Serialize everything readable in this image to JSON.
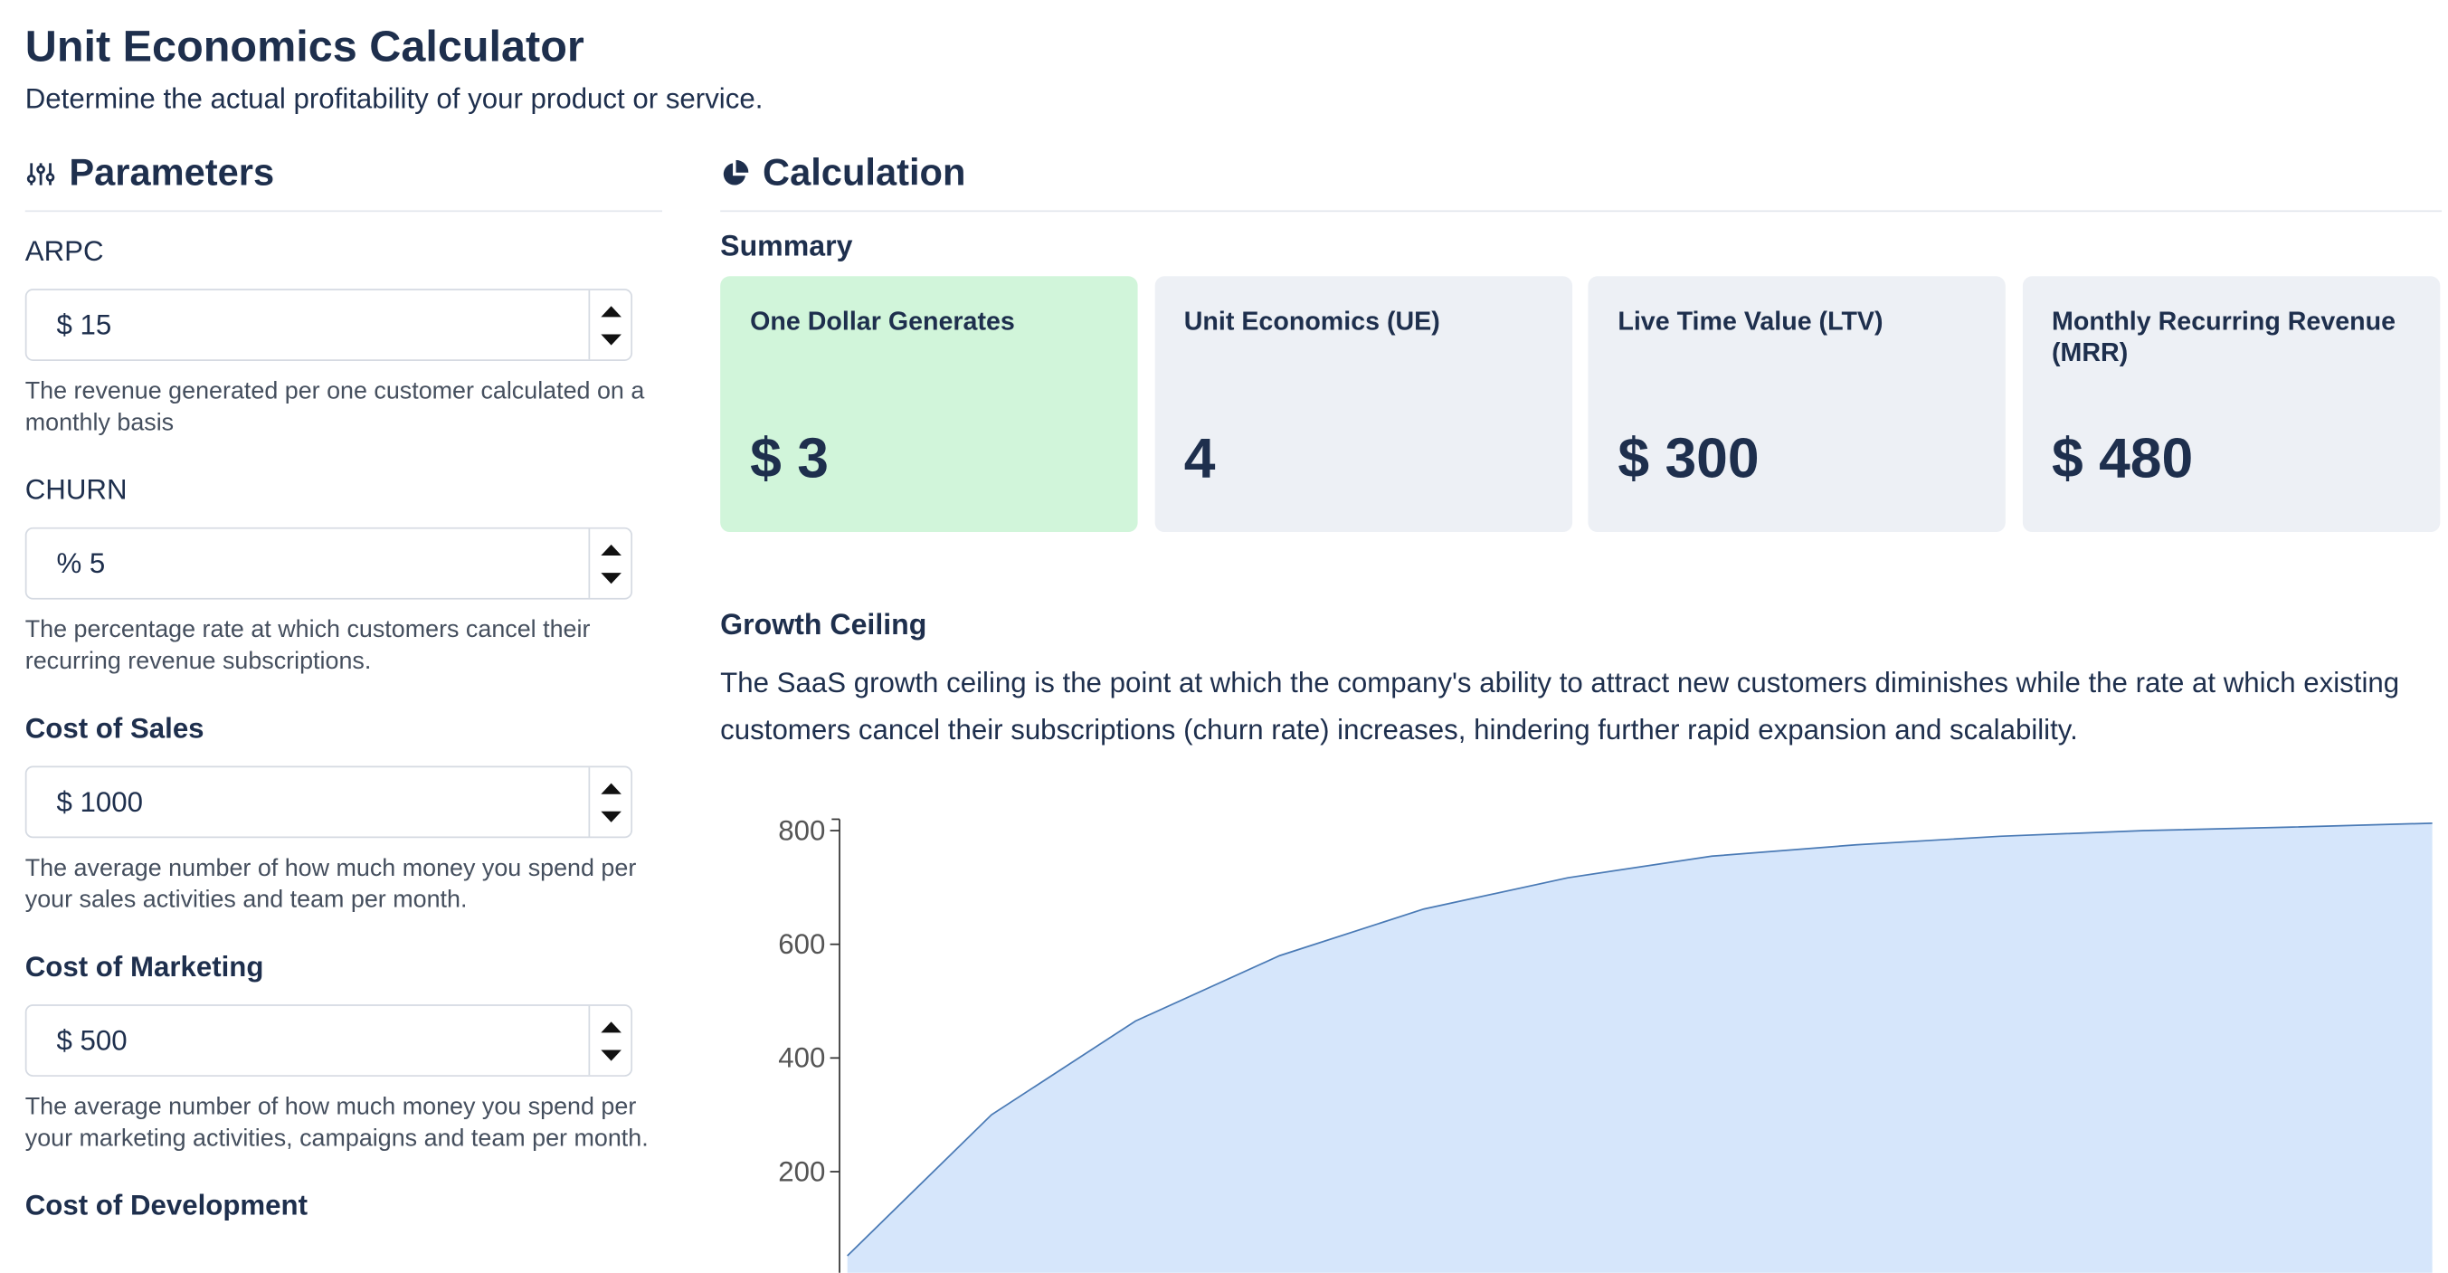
{
  "header": {
    "title": "Unit Economics Calculator",
    "subtitle": "Determine the actual profitability of your product or service."
  },
  "parameters": {
    "title": "Parameters",
    "fields": [
      {
        "label": "ARPC",
        "prefix": "$",
        "value": 15,
        "help": "The revenue generated per one customer calculated on a monthly basis"
      },
      {
        "label": "CHURN",
        "prefix": "%",
        "value": 5,
        "help": "The percentage rate at which customers cancel their recurring revenue subscriptions."
      },
      {
        "label": "Cost of Sales",
        "prefix": "$",
        "value": 1000,
        "help": "The average number of how much money you spend per your sales activities and team per month."
      },
      {
        "label": "Cost of Marketing",
        "prefix": "$",
        "value": 500,
        "help": "The average number of how much money you spend per your marketing activities, campaigns and team per month."
      },
      {
        "label": "Cost of Development"
      }
    ]
  },
  "calculation": {
    "title": "Calculation",
    "summary_title": "Summary",
    "cards": [
      {
        "label": "One Dollar Generates",
        "value": "$ 3"
      },
      {
        "label": "Unit Economics (UE)",
        "value": "4"
      },
      {
        "label": "Live Time Value (LTV)",
        "value": "$ 300"
      },
      {
        "label": "Monthly Recurring Revenue (MRR)",
        "value": "$ 480"
      }
    ]
  },
  "growth": {
    "title": "Growth Ceiling",
    "description": "The SaaS growth ceiling is the point at which the company's ability to attract new customers diminishes while the rate at which existing customers cancel their subscriptions (churn rate) increases, hindering further rapid expansion and scalability."
  },
  "chart_data": {
    "type": "area",
    "values": [
      52,
      300,
      465,
      580,
      662,
      717,
      755,
      775,
      790,
      800,
      806,
      813
    ],
    "color": "#d6e6fb",
    "ylim": [
      0,
      820
    ],
    "yticks": [
      200,
      400,
      600,
      800
    ]
  }
}
